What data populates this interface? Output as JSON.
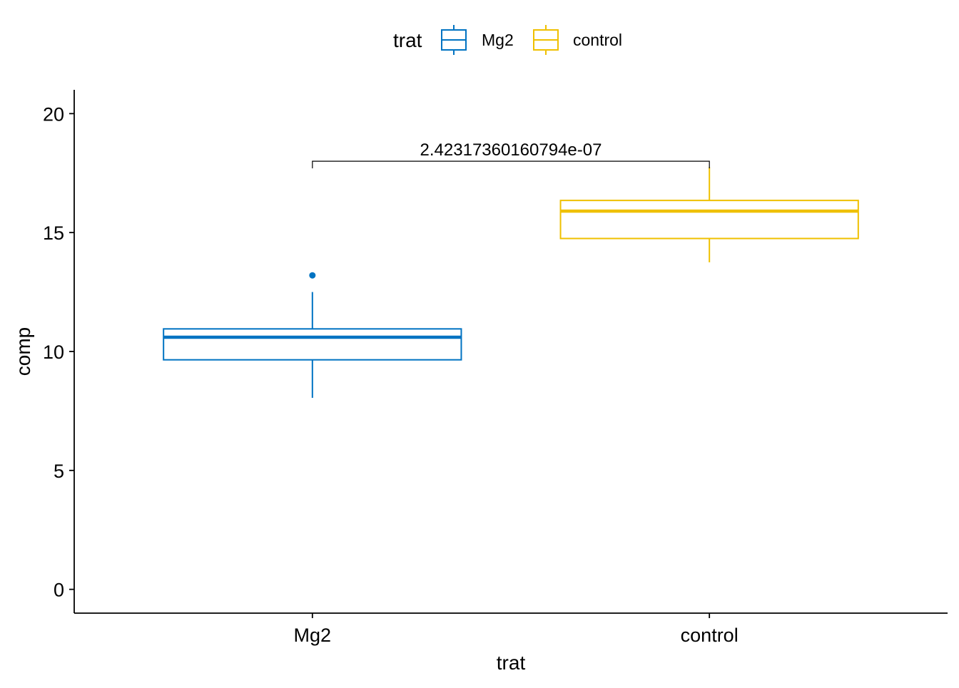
{
  "chart_data": {
    "type": "boxplot",
    "xlabel": "trat",
    "ylabel": "comp",
    "ylim": [
      -1,
      21
    ],
    "yticks": [
      0,
      5,
      10,
      15,
      20
    ],
    "y_tick_labels": [
      "0",
      "5",
      "10",
      "15",
      "20"
    ],
    "categories": [
      "Mg2",
      "control"
    ],
    "legend": {
      "title": "trat",
      "position": "top",
      "entries": [
        "Mg2",
        "control"
      ]
    },
    "series": [
      {
        "name": "Mg2",
        "color": "#0073C2",
        "whisker_low": 8.05,
        "q1": 9.65,
        "median": 10.6,
        "q3": 10.95,
        "whisker_high": 12.5,
        "outliers": [
          13.2
        ]
      },
      {
        "name": "control",
        "color": "#EFC000",
        "whisker_low": 13.75,
        "q1": 14.75,
        "median": 15.9,
        "q3": 16.35,
        "whisker_high": 17.75,
        "outliers": []
      }
    ],
    "annotations": [
      {
        "type": "bracket",
        "from": "Mg2",
        "to": "control",
        "y": 18,
        "label": "2.42317360160794e-07"
      }
    ],
    "grid": false
  }
}
